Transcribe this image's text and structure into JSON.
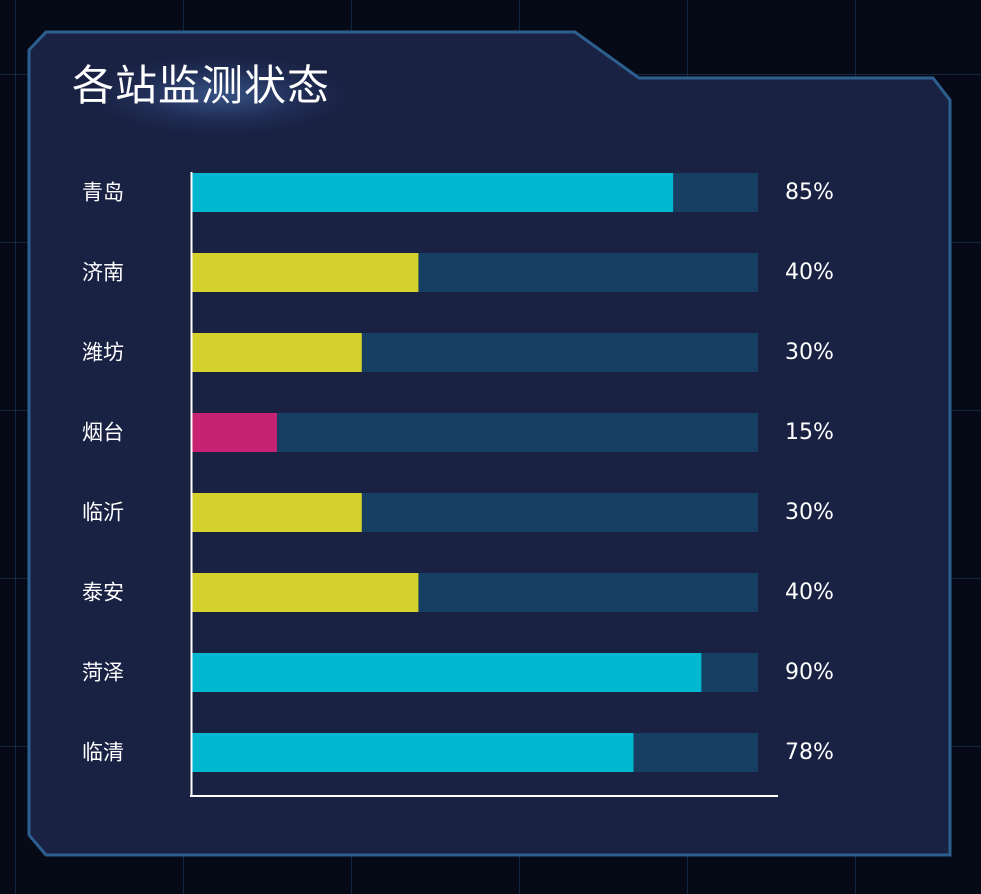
{
  "panel": {
    "title": "各站监测状态"
  },
  "colors": {
    "panel_bg": "#1a2244",
    "panel_border": "#2c5f8e",
    "track": "#173f63",
    "high": "#00b8d0",
    "medium": "#d4d12c",
    "low": "#c82373",
    "axis": "#ffffff"
  },
  "chart_data": {
    "type": "bar",
    "orientation": "horizontal",
    "categories": [
      "青岛",
      "济南",
      "潍坊",
      "烟台",
      "临沂",
      "泰安",
      "菏泽",
      "临清"
    ],
    "values": [
      85,
      40,
      30,
      15,
      30,
      40,
      90,
      78
    ],
    "value_labels": [
      "85%",
      "40%",
      "30%",
      "15%",
      "30%",
      "40%",
      "90%",
      "78%"
    ],
    "bar_colors": [
      "#00b8d0",
      "#d4d12c",
      "#d4d12c",
      "#c82373",
      "#d4d12c",
      "#d4d12c",
      "#00b8d0",
      "#00b8d0"
    ],
    "xlim": [
      0,
      100
    ],
    "grid": false,
    "legend": "none"
  }
}
